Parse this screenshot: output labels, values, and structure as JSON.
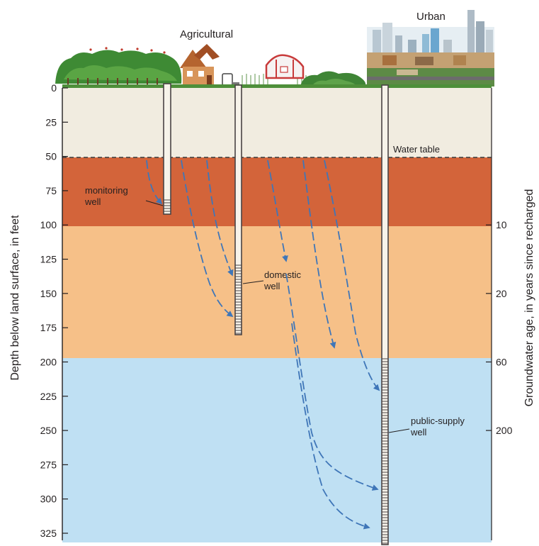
{
  "surface_labels": {
    "agricultural": "Agricultural",
    "urban": "Urban"
  },
  "water_table_label": "Water table",
  "wells": {
    "monitoring": {
      "line1": "monitoring",
      "line2": "well"
    },
    "domestic": {
      "line1": "domestic",
      "line2": "well"
    },
    "public_supply": {
      "line1": "public-supply",
      "line2": "well"
    }
  },
  "axes": {
    "left_title": "Depth below land surface, in feet",
    "right_title": "Groundwater age, in years since recharged",
    "depth_ticks": [
      "0",
      "25",
      "50",
      "75",
      "100",
      "125",
      "150",
      "175",
      "200",
      "225",
      "250",
      "275",
      "300",
      "325"
    ],
    "age_ticks": [
      "10",
      "20",
      "60",
      "200"
    ]
  },
  "layers": [
    {
      "name": "unsaturated-zone",
      "color": "#f1ece0"
    },
    {
      "name": "young-groundwater",
      "color": "#d3643a"
    },
    {
      "name": "intermediate-groundwater",
      "color": "#f6c088"
    },
    {
      "name": "old-groundwater",
      "color": "#bfe0f3"
    }
  ],
  "colors": {
    "flow_arrow": "#3f76b8",
    "well_casing": "#4a4344",
    "grass": "#4e8f3a"
  }
}
